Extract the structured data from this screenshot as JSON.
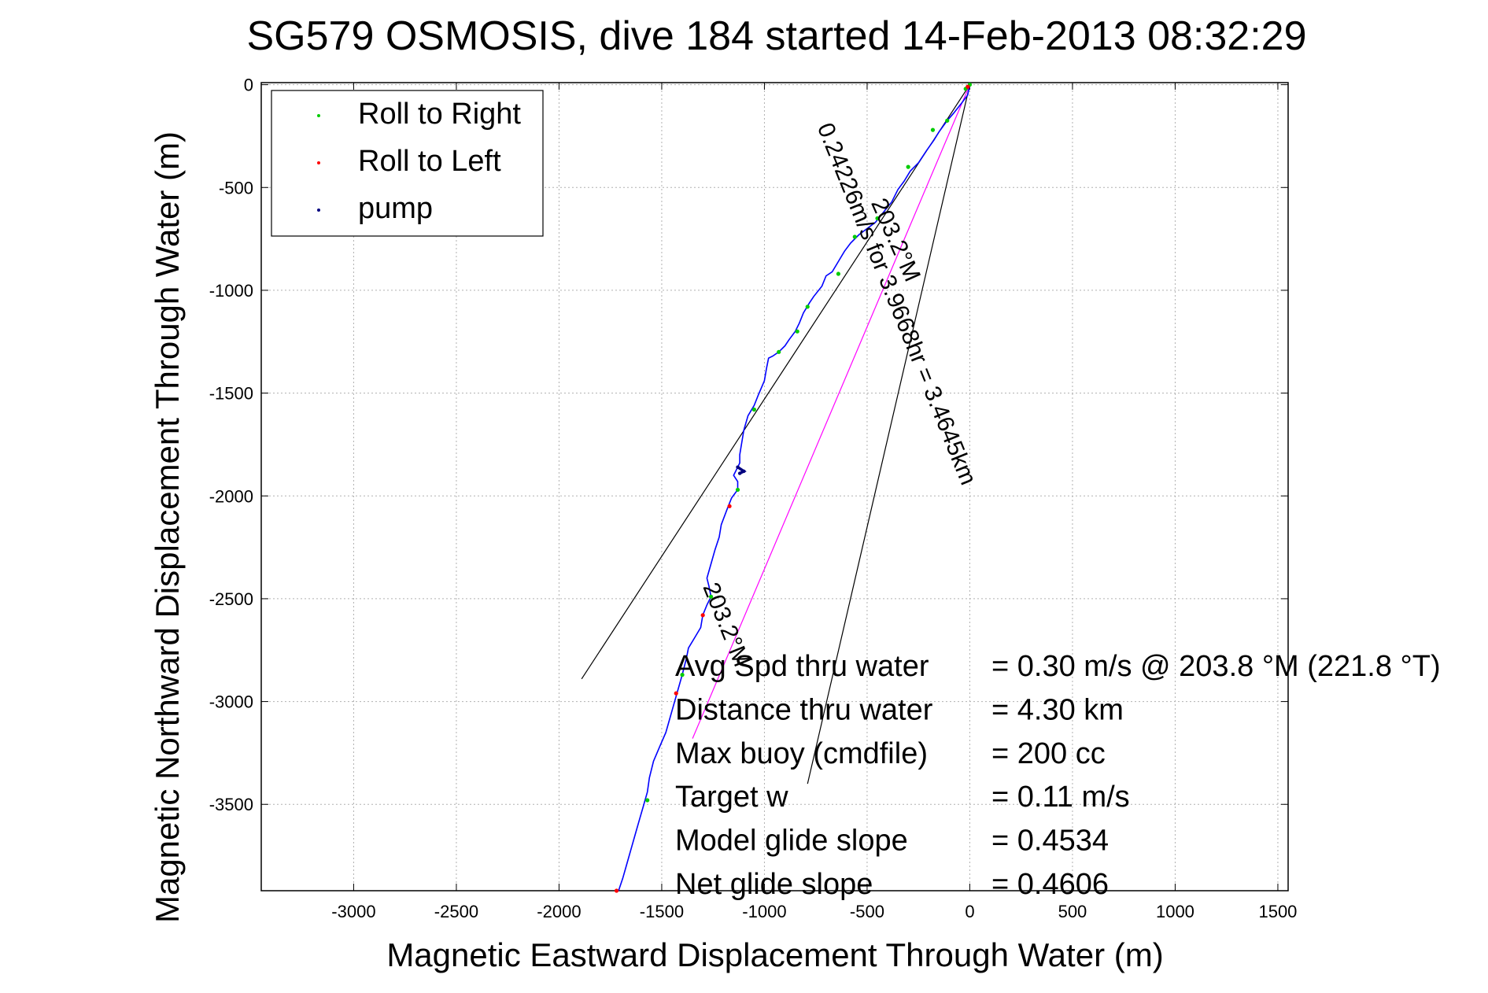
{
  "chart_data": {
    "type": "scatter",
    "title": "SG579 OSMOSIS, dive 184 started 14-Feb-2013 08:32:29",
    "xlabel": "Magnetic Eastward Displacement Through Water (m)",
    "ylabel": "Magnetic Northward Displacement Through Water (m)",
    "xlim": [
      -3450,
      1550
    ],
    "ylim": [
      -3920,
      10
    ],
    "xticks": [
      -3000,
      -2500,
      -2000,
      -1500,
      -1000,
      -500,
      0,
      500,
      1000,
      1500
    ],
    "yticks": [
      0,
      -500,
      -1000,
      -1500,
      -2000,
      -2500,
      -3000,
      -3500
    ],
    "grid": true,
    "legend_location": "top-left",
    "legend": [
      {
        "label": "Roll to Right",
        "color": "#00cc00"
      },
      {
        "label": "Roll to Left",
        "color": "#ff0000"
      },
      {
        "label": "pump",
        "color": "#00007f"
      }
    ],
    "track": {
      "color": "#0000ff",
      "points": [
        [
          0,
          0
        ],
        [
          -10,
          -50
        ],
        [
          -40,
          -90
        ],
        [
          -80,
          -140
        ],
        [
          -110,
          -175
        ],
        [
          -150,
          -230
        ],
        [
          -175,
          -270
        ],
        [
          -210,
          -320
        ],
        [
          -250,
          -380
        ],
        [
          -290,
          -420
        ],
        [
          -320,
          -470
        ],
        [
          -350,
          -510
        ],
        [
          -380,
          -570
        ],
        [
          -420,
          -620
        ],
        [
          -460,
          -670
        ],
        [
          -500,
          -700
        ],
        [
          -540,
          -730
        ],
        [
          -580,
          -770
        ],
        [
          -610,
          -810
        ],
        [
          -640,
          -860
        ],
        [
          -670,
          -910
        ],
        [
          -700,
          -930
        ],
        [
          -720,
          -980
        ],
        [
          -760,
          -1030
        ],
        [
          -780,
          -1060
        ],
        [
          -810,
          -1110
        ],
        [
          -830,
          -1160
        ],
        [
          -850,
          -1200
        ],
        [
          -880,
          -1240
        ],
        [
          -900,
          -1270
        ],
        [
          -930,
          -1300
        ],
        [
          -960,
          -1320
        ],
        [
          -980,
          -1330
        ],
        [
          -990,
          -1380
        ],
        [
          -1000,
          -1440
        ],
        [
          -1030,
          -1510
        ],
        [
          -1050,
          -1560
        ],
        [
          -1080,
          -1610
        ],
        [
          -1100,
          -1680
        ],
        [
          -1110,
          -1740
        ],
        [
          -1120,
          -1800
        ],
        [
          -1120,
          -1840
        ],
        [
          -1130,
          -1860
        ],
        [
          -1150,
          -1900
        ],
        [
          -1130,
          -1930
        ],
        [
          -1130,
          -1970
        ],
        [
          -1160,
          -2010
        ],
        [
          -1180,
          -2060
        ],
        [
          -1210,
          -2140
        ],
        [
          -1220,
          -2200
        ],
        [
          -1240,
          -2260
        ],
        [
          -1260,
          -2330
        ],
        [
          -1280,
          -2400
        ],
        [
          -1270,
          -2440
        ],
        [
          -1260,
          -2490
        ],
        [
          -1280,
          -2530
        ],
        [
          -1300,
          -2580
        ],
        [
          -1310,
          -2640
        ],
        [
          -1340,
          -2690
        ],
        [
          -1370,
          -2740
        ],
        [
          -1380,
          -2790
        ],
        [
          -1400,
          -2870
        ],
        [
          -1420,
          -2940
        ],
        [
          -1440,
          -3010
        ],
        [
          -1460,
          -3080
        ],
        [
          -1480,
          -3150
        ],
        [
          -1510,
          -3220
        ],
        [
          -1540,
          -3290
        ],
        [
          -1560,
          -3370
        ],
        [
          -1570,
          -3440
        ],
        [
          -1590,
          -3510
        ],
        [
          -1610,
          -3580
        ],
        [
          -1630,
          -3650
        ],
        [
          -1650,
          -3720
        ],
        [
          -1670,
          -3790
        ],
        [
          -1690,
          -3860
        ],
        [
          -1710,
          -3920
        ]
      ]
    },
    "roll_right_points": [
      [
        0,
        0
      ],
      [
        -20,
        -20
      ],
      [
        -110,
        -175
      ],
      [
        -180,
        -220
      ],
      [
        -300,
        -400
      ],
      [
        -450,
        -650
      ],
      [
        -560,
        -740
      ],
      [
        -640,
        -920
      ],
      [
        -790,
        -1080
      ],
      [
        -840,
        -1200
      ],
      [
        -930,
        -1300
      ],
      [
        -1050,
        -1580
      ],
      [
        -1130,
        -1970
      ],
      [
        -1260,
        -2490
      ],
      [
        -1400,
        -2870
      ],
      [
        -1570,
        -3480
      ]
    ],
    "roll_left_points": [
      [
        -10,
        -10
      ],
      [
        -1170,
        -2050
      ],
      [
        -1300,
        -2580
      ],
      [
        -1430,
        -2960
      ],
      [
        -1720,
        -3920
      ]
    ],
    "pump_points": [
      [
        -1120,
        -1890
      ],
      [
        -1100,
        -1880
      ],
      [
        -1130,
        -1860
      ]
    ],
    "reference_lines": [
      {
        "points": [
          [
            0,
            0
          ],
          [
            -1890,
            -2890
          ]
        ],
        "color": "#000000"
      },
      {
        "points": [
          [
            0,
            0
          ],
          [
            -790,
            -3400
          ]
        ],
        "color": "#000000"
      },
      {
        "points": [
          [
            0,
            0
          ],
          [
            -1350,
            -3180
          ]
        ],
        "color": "#ff00ff"
      }
    ],
    "annotations": [
      {
        "text": "0.24226m/s for 3.9668hr = 3.4645km",
        "x": -390,
        "y": -1080,
        "rotation_deg": 68
      },
      {
        "text": "203.2°M",
        "x": -395,
        "y": -770,
        "rotation_deg": 66
      },
      {
        "text": "203.2°M",
        "x": -1220,
        "y": -2640,
        "rotation_deg": 68
      }
    ],
    "stats": [
      {
        "label": "Avg Spd thru water",
        "value": "=  0.30 m/s @ 203.8 °M (221.8 °T)"
      },
      {
        "label": "Distance thru water",
        "value": "=  4.30 km"
      },
      {
        "label": "Max buoy (cmdfile)",
        "value": "= 200 cc"
      },
      {
        "label": "Target w",
        "value": "= 0.11 m/s"
      },
      {
        "label": "Model glide slope",
        "value": "= 0.4534"
      },
      {
        "label": "Net glide slope",
        "value": "= 0.4606"
      }
    ]
  }
}
